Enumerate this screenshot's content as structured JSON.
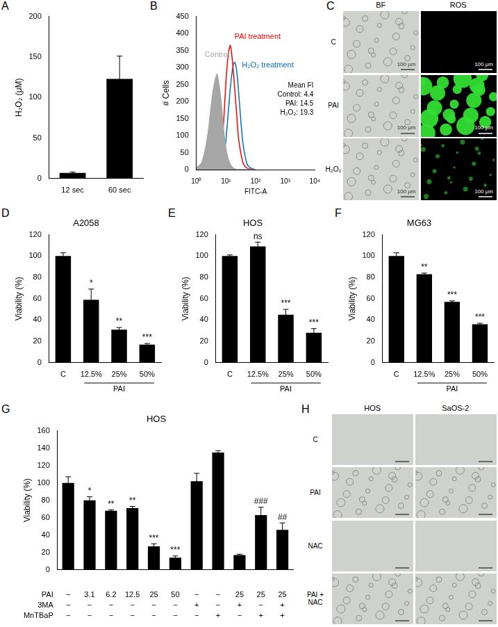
{
  "chart_data": [
    {
      "panel": "A",
      "type": "bar",
      "categories": [
        "12 sec",
        "60 sec"
      ],
      "values": [
        7,
        123
      ],
      "errors": [
        1,
        28
      ],
      "color": "#000000",
      "ylabel": "H₂O₂ (μM)",
      "ylim": [
        0,
        200
      ],
      "yticks": [
        0,
        50,
        100,
        150,
        200
      ],
      "grid": false
    },
    {
      "panel": "B",
      "type": "line",
      "log": "x",
      "xlabel": "FITC-A",
      "ylabel": "# Cells",
      "x": [
        1,
        1.5,
        2,
        2.5,
        3,
        3.5,
        4,
        4.5,
        5,
        6,
        7,
        8,
        9,
        10,
        12,
        14,
        16,
        18,
        20,
        23,
        26,
        30,
        35,
        40,
        50,
        60,
        80,
        100
      ],
      "series": [
        {
          "name": "Control",
          "type": "area",
          "color": "#a6a6a6",
          "values": [
            5,
            20,
            60,
            110,
            170,
            220,
            250,
            270,
            280,
            240,
            190,
            130,
            90,
            60,
            30,
            15,
            8,
            4,
            2,
            0,
            0,
            0,
            0,
            0,
            0,
            0,
            0,
            0
          ]
        },
        {
          "name": "PAI treatment",
          "type": "line",
          "color": "#ff0000",
          "values": [
            0,
            0,
            0,
            0,
            0,
            0,
            0,
            0,
            5,
            20,
            60,
            120,
            190,
            260,
            340,
            365,
            330,
            280,
            230,
            160,
            100,
            60,
            30,
            15,
            5,
            2,
            0,
            0
          ]
        },
        {
          "name": "H₂O₂ treatment",
          "type": "line",
          "color": "#0070c0",
          "values": [
            0,
            0,
            0,
            0,
            0,
            0,
            0,
            0,
            0,
            0,
            5,
            20,
            50,
            90,
            170,
            240,
            285,
            310,
            315,
            290,
            240,
            170,
            100,
            60,
            20,
            8,
            2,
            0
          ]
        }
      ],
      "xlim": [
        1,
        10000
      ],
      "xticks": [
        {
          "value": 1,
          "label": "10⁰"
        },
        {
          "value": 10,
          "label": "10¹"
        },
        {
          "value": 100,
          "label": "10²"
        },
        {
          "value": 1000,
          "label": "10³"
        },
        {
          "value": 10000,
          "label": "10⁴"
        }
      ],
      "ylim": [
        0,
        450
      ],
      "yticks": [
        0,
        50,
        100,
        150,
        200,
        250,
        300,
        350,
        400,
        450
      ],
      "annotations": [
        "Mean FI",
        "Control: 4.4",
        "PAI: 14.5",
        "H₂O₂: 19.3"
      ],
      "grid": false
    },
    {
      "panel": "D",
      "type": "bar",
      "title": "A2058",
      "categories": [
        "C",
        "12.5%",
        "25%",
        "50%"
      ],
      "values": [
        100,
        59,
        31,
        17
      ],
      "errors": [
        3,
        10,
        2,
        1
      ],
      "significance": [
        null,
        "*",
        "**",
        "***"
      ],
      "groups": [
        {
          "label": "PAI",
          "categories": [
            "12.5%",
            "25%",
            "50%"
          ]
        }
      ],
      "color": "#000000",
      "ylabel": "Viability (%)",
      "ylim": [
        0,
        120
      ],
      "yticks": [
        0,
        20,
        40,
        60,
        80,
        100,
        120
      ],
      "grid": false
    },
    {
      "panel": "E",
      "type": "bar",
      "title": "HOS",
      "categories": [
        "C",
        "12.5%",
        "25%",
        "50%"
      ],
      "values": [
        100,
        109,
        45,
        28
      ],
      "errors": [
        1,
        4,
        5,
        4
      ],
      "significance": [
        null,
        "ns",
        "***",
        "***"
      ],
      "groups": [
        {
          "label": "PAI",
          "categories": [
            "12.5%",
            "25%",
            "50%"
          ]
        }
      ],
      "color": "#000000",
      "ylabel": "Viability (%)",
      "ylim": [
        0,
        120
      ],
      "yticks": [
        0,
        20,
        40,
        60,
        80,
        100,
        120
      ],
      "grid": false
    },
    {
      "panel": "F",
      "type": "bar",
      "title": "MG63",
      "categories": [
        "C",
        "12.5%",
        "25%",
        "50%"
      ],
      "values": [
        100,
        83,
        57,
        36
      ],
      "errors": [
        3,
        1,
        1,
        1
      ],
      "significance": [
        null,
        "**",
        "***",
        "***"
      ],
      "groups": [
        {
          "label": "PAI",
          "categories": [
            "12.5%",
            "25%",
            "50%"
          ]
        }
      ],
      "color": "#000000",
      "ylabel": "Viability (%)",
      "ylim": [
        0,
        120
      ],
      "yticks": [
        0,
        20,
        40,
        60,
        80,
        100,
        120
      ],
      "grid": false
    },
    {
      "panel": "G",
      "type": "bar",
      "title": "HOS",
      "categories": [
        null,
        null,
        null,
        null,
        null,
        null,
        null,
        null,
        null,
        null,
        null
      ],
      "values": [
        100,
        80,
        68,
        71,
        27,
        14,
        102,
        135,
        17,
        63,
        46
      ],
      "errors": [
        7,
        4,
        1,
        2,
        3,
        2,
        9,
        2,
        1,
        9,
        8
      ],
      "significance": [
        null,
        "*",
        "**",
        "**",
        "***",
        "***",
        null,
        null,
        null,
        "###",
        "##"
      ],
      "condition_table": {
        "rows": [
          {
            "label": "PAI",
            "values": [
              "−",
              "3.1",
              "6.2",
              "12.5",
              "25",
              "50",
              "−",
              "−",
              "25",
              "25",
              "25"
            ]
          },
          {
            "label": "3MA",
            "values": [
              "−",
              "−",
              "−",
              "−",
              "−",
              "−",
              "+",
              "−",
              "+",
              "−",
              "+"
            ]
          },
          {
            "label": "MnTBaP",
            "values": [
              "−",
              "−",
              "−",
              "−",
              "−",
              "−",
              "−",
              "+",
              "−",
              "+",
              "+"
            ]
          }
        ]
      },
      "color": "#000000",
      "ylabel": "Viability (%)",
      "ylim": [
        0,
        160
      ],
      "yticks": [
        0,
        20,
        40,
        60,
        80,
        100,
        120,
        140,
        160
      ],
      "grid": false
    }
  ],
  "image_panels": [
    {
      "panel": "C",
      "columns": [
        "BF",
        "ROS"
      ],
      "rows": [
        "C",
        "PAI",
        "H₂O₂"
      ],
      "scale_bar": "100 μm"
    },
    {
      "panel": "H",
      "columns": [
        "HOS",
        "SaOS-2"
      ],
      "rows": [
        "C",
        "PAI",
        "NAC",
        "PAI + NAC"
      ]
    }
  ]
}
